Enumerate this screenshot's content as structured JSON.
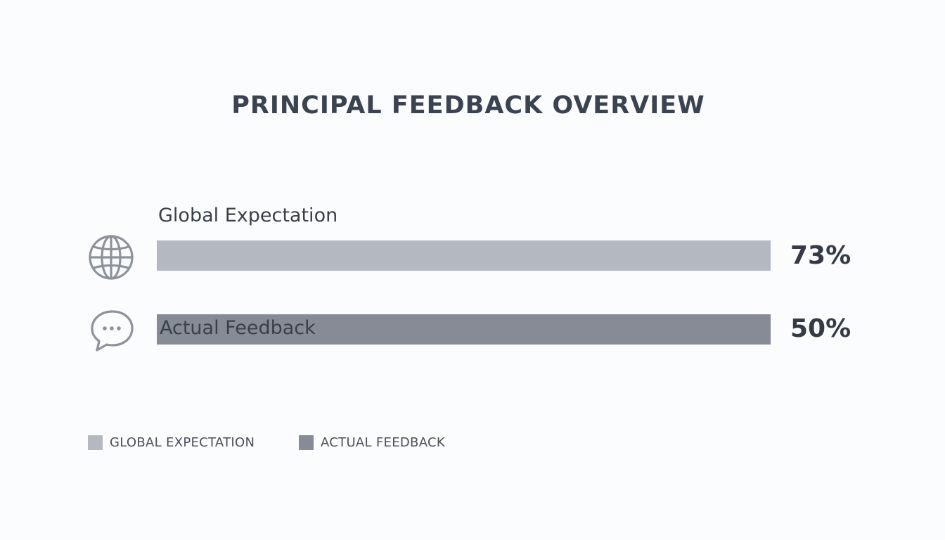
{
  "chart_data": {
    "type": "bar",
    "orientation": "horizontal",
    "title": "PRINCIPAL FEEDBACK OVERVIEW",
    "categories": [
      "Global Expectation",
      "Actual Feedback"
    ],
    "values": [
      73,
      50
    ],
    "value_labels": [
      "73%",
      "50%"
    ],
    "icons": [
      "globe-icon",
      "chat-bubble-icon"
    ],
    "legend": {
      "placement": "bottom-left",
      "entries": [
        {
          "label": "GLOBAL EXPECTATION",
          "color": "#b4b9c1"
        },
        {
          "label": "ACTUAL FEEDBACK",
          "color": "#868b95"
        }
      ]
    },
    "colors": [
      "#b4b9c1",
      "#868b95"
    ],
    "grid": false
  }
}
